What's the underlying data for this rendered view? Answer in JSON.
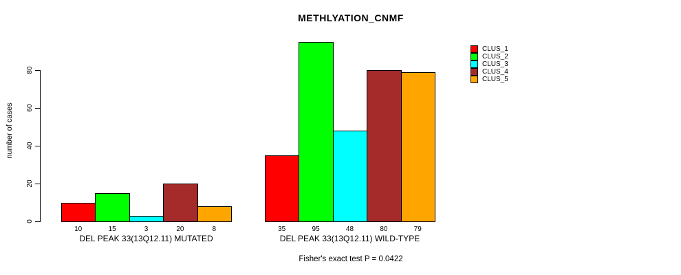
{
  "title": "METHLYATION_CNMF",
  "ylabel": "number of cases",
  "footer": "Fisher's exact test P = 0.0422",
  "chart_data": {
    "type": "bar",
    "title": "METHLYATION_CNMF",
    "xlabel": "",
    "ylabel": "number of cases",
    "categories": [
      "DEL PEAK 33(13Q12.11) MUTATED",
      "DEL PEAK 33(13Q12.11) WILD-TYPE"
    ],
    "series": [
      {
        "name": "CLUS_1",
        "color": "#FF0000",
        "values": [
          10,
          35
        ]
      },
      {
        "name": "CLUS_2",
        "color": "#00FF00",
        "values": [
          15,
          95
        ]
      },
      {
        "name": "CLUS_3",
        "color": "#00FFFF",
        "values": [
          3,
          48
        ]
      },
      {
        "name": "CLUS_4",
        "color": "#A52A2A",
        "values": [
          20,
          80
        ]
      },
      {
        "name": "CLUS_5",
        "color": "#FFA500",
        "values": [
          8,
          79
        ]
      }
    ],
    "bar_value_labels": [
      [
        10,
        15,
        3,
        20,
        8
      ],
      [
        35,
        95,
        48,
        80,
        79
      ]
    ],
    "yticks": [
      0,
      20,
      40,
      60,
      80
    ],
    "ylim": [
      0,
      95
    ],
    "grid": false,
    "legend_position": "top-right",
    "annotation": "Fisher's exact test P = 0.0422"
  }
}
